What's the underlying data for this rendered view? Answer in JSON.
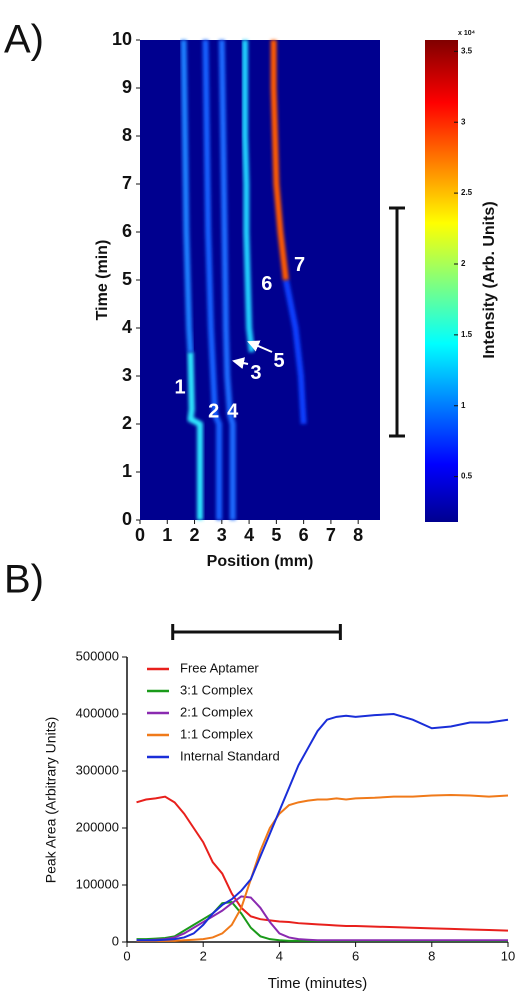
{
  "panels": [
    "A)",
    "B)"
  ],
  "chart_data": [
    {
      "type": "heatmap",
      "xlabel": "Position (mm)",
      "ylabel": "Time (min)",
      "xlim": [
        0,
        8.8
      ],
      "xticks": [
        0,
        1,
        2,
        3,
        4,
        5,
        6,
        7,
        8
      ],
      "ylim": [
        0,
        10
      ],
      "yticks": [
        0,
        1,
        2,
        3,
        4,
        5,
        6,
        7,
        8,
        9,
        10
      ],
      "background": "#00008f",
      "bands": [
        {
          "x": [
            2.2,
            2.2,
            1.85,
            1.9,
            1.85
          ],
          "y": [
            0,
            2,
            2.1,
            2.3,
            3.5
          ],
          "color": "#2ee6ff"
        },
        {
          "x": [
            1.85,
            1.8,
            1.7,
            1.65,
            1.6
          ],
          "y": [
            3.5,
            4,
            6,
            8,
            10
          ],
          "color": "#1a7fff"
        },
        {
          "x": [
            2.9,
            2.9,
            2.75,
            2.6,
            2.5,
            2.45,
            2.4
          ],
          "y": [
            0,
            2,
            2.2,
            4,
            6,
            8,
            10
          ],
          "color": "#1560ff"
        },
        {
          "x": [
            3.4,
            3.4,
            3.3,
            3.2,
            3.15,
            3.1,
            3.05,
            3.0
          ],
          "y": [
            0,
            2,
            2.2,
            3,
            4,
            6,
            8,
            10
          ],
          "color": "#1a6aff"
        },
        {
          "x": [
            4.1,
            4.0,
            3.95,
            3.9,
            3.9,
            3.85,
            3.85,
            3.85
          ],
          "y": [
            3.5,
            4,
            5,
            6,
            7,
            8,
            9,
            10
          ],
          "color": "#20d0ff"
        },
        {
          "x": [
            6.0,
            5.9,
            5.7,
            5.35
          ],
          "y": [
            2,
            3,
            4,
            5
          ],
          "color": "#1040ff"
        },
        {
          "x": [
            5.35,
            5.15,
            5.0,
            4.95,
            4.9,
            4.9
          ],
          "y": [
            5,
            6,
            7,
            8,
            9,
            10
          ],
          "color": "#ff5a00"
        }
      ],
      "annotations": [
        {
          "text": "1",
          "x": 1.47,
          "y": 2.75
        },
        {
          "text": "2",
          "x": 2.7,
          "y": 2.25
        },
        {
          "text": "4",
          "x": 3.4,
          "y": 2.25
        },
        {
          "text": "3",
          "x": 4.25,
          "y": 3.05
        },
        {
          "text": "5",
          "x": 5.1,
          "y": 3.3
        },
        {
          "text": "6",
          "x": 4.65,
          "y": 4.9
        },
        {
          "text": "7",
          "x": 5.85,
          "y": 5.3
        }
      ],
      "bracket": [
        1.75,
        6.5
      ],
      "colorbar": {
        "label": "Intensity (Arb. Units)",
        "multiplier": "x 10⁴",
        "clim": [
          0.18,
          3.58
        ],
        "ticks": [
          0.5,
          1,
          1.5,
          2,
          2.5,
          3,
          3.5
        ]
      }
    },
    {
      "type": "line",
      "xlabel": "Time (minutes)",
      "ylabel": "Peak Area (Arbitrary Units)",
      "xlim": [
        0,
        10
      ],
      "xticks": [
        0,
        2,
        4,
        6,
        8,
        10
      ],
      "ylim": [
        0,
        500000
      ],
      "yticks": [
        0,
        100000,
        200000,
        300000,
        400000,
        500000
      ],
      "legend": "upper left",
      "bracket": [
        1.2,
        5.6
      ],
      "x": [
        0.25,
        0.5,
        0.75,
        1,
        1.25,
        1.5,
        1.75,
        2,
        2.25,
        2.5,
        2.75,
        3,
        3.25,
        3.5,
        3.75,
        4,
        4.25,
        4.5,
        4.75,
        5,
        5.25,
        5.5,
        5.75,
        6,
        6.5,
        7,
        7.5,
        8,
        8.5,
        9,
        9.5,
        10
      ],
      "series": [
        {
          "name": "Free Aptamer",
          "color": "#e8201c",
          "values": [
            245000,
            250000,
            252000,
            255000,
            245000,
            225000,
            200000,
            175000,
            140000,
            120000,
            85000,
            60000,
            45000,
            40000,
            38000,
            36000,
            35000,
            33000,
            32000,
            31000,
            30000,
            29000,
            28000,
            28000,
            27000,
            26000,
            25000,
            24000,
            23000,
            22000,
            21000,
            20000
          ]
        },
        {
          "name": "3:1 Complex",
          "color": "#1a9a1a",
          "values": [
            5000,
            5000,
            6000,
            7000,
            10000,
            20000,
            30000,
            40000,
            50000,
            68000,
            70000,
            50000,
            25000,
            10000,
            5000,
            3000,
            2000,
            2000,
            2000,
            2000,
            2000,
            2000,
            2000,
            2000,
            2000,
            2000,
            2000,
            2000,
            2000,
            2000,
            2000,
            2000
          ]
        },
        {
          "name": "2:1 Complex",
          "color": "#8a2ab0",
          "values": [
            3000,
            3000,
            4000,
            5000,
            8000,
            15000,
            25000,
            35000,
            45000,
            55000,
            68000,
            80000,
            78000,
            60000,
            35000,
            15000,
            8000,
            5000,
            4000,
            3000,
            3000,
            3000,
            3000,
            3000,
            3000,
            3000,
            3000,
            3000,
            3000,
            3000,
            3000,
            3000
          ]
        },
        {
          "name": "1:1 Complex",
          "color": "#f07a1a",
          "values": [
            2000,
            2000,
            2000,
            2000,
            2000,
            3000,
            4000,
            5000,
            8000,
            15000,
            30000,
            60000,
            110000,
            160000,
            200000,
            225000,
            240000,
            245000,
            248000,
            250000,
            250000,
            252000,
            250000,
            252000,
            253000,
            255000,
            255000,
            257000,
            258000,
            257000,
            255000,
            257000
          ]
        },
        {
          "name": "Internal Standard",
          "color": "#1a2ed8",
          "values": [
            3000,
            3000,
            3000,
            4000,
            5000,
            8000,
            15000,
            30000,
            50000,
            65000,
            75000,
            90000,
            110000,
            150000,
            190000,
            230000,
            270000,
            310000,
            340000,
            370000,
            390000,
            395000,
            397000,
            395000,
            398000,
            400000,
            390000,
            375000,
            378000,
            385000,
            385000,
            390000
          ]
        }
      ]
    }
  ]
}
